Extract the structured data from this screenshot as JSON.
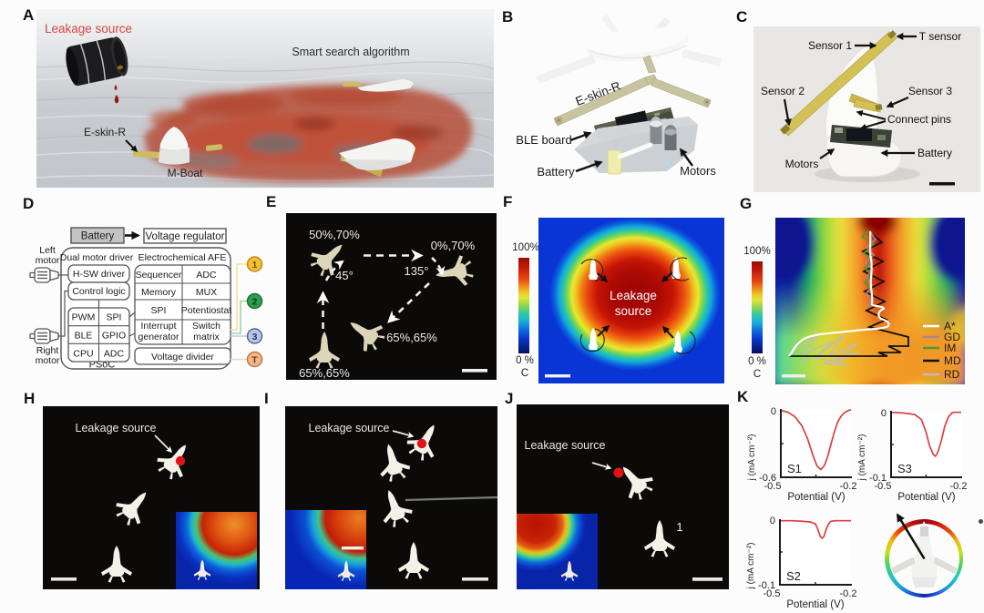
{
  "figure": {
    "panelA": {
      "label": "A",
      "leakage_source": "Leakage source",
      "smart_search": "Smart search algorithm",
      "eskin": "E-skin-R",
      "mboat": "M-Boat",
      "colors": {
        "leak_text": "#d64541",
        "red_patch": "#bf4a33",
        "water": "#c9ccd1"
      }
    },
    "panelB": {
      "label": "B",
      "eskin": "E-skin-R",
      "ble_board": "BLE board",
      "battery": "Battery",
      "motors": "Motors"
    },
    "panelC": {
      "label": "C",
      "sensor1": "Sensor 1",
      "t_sensor": "T sensor",
      "sensor2": "Sensor 2",
      "sensor3": "Sensor 3",
      "connect_pins": "Connect pins",
      "motors": "Motors",
      "battery": "Battery"
    },
    "panelD": {
      "label": "D",
      "battery": "Battery",
      "voltage_regulator": "Voltage regulator",
      "left_motor_line1": "Left",
      "left_motor_line2": "motor",
      "right_motor_line1": "Right",
      "right_motor_line2": "motor",
      "dual_motor_driver": "Dual motor driver",
      "electrochemical_afe": "Electrochemical AFE",
      "hsw_driver": "H-SW driver",
      "control_logic": "Control logic",
      "pwm": "PWM",
      "spi": "SPI",
      "ble": "BLE",
      "gpio": "GPIO",
      "cpu": "CPU",
      "adc": "ADC",
      "sequencer": "Sequencer",
      "adc_afe": "ADC",
      "memory": "Memory",
      "mux": "MUX",
      "spi_afe": "SPI",
      "potentiostat": "Potentiostat",
      "interrupt_line1": "Interrupt",
      "interrupt_line2": "generator",
      "switch_line1": "Switch",
      "switch_line2": "matrix",
      "voltage_divider": "Voltage divider",
      "psoc": "PSoC",
      "node1": "1",
      "node2": "2",
      "node3": "3",
      "nodeT": "T",
      "node_colors": {
        "n1": "#f2c233",
        "n2": "#2f9e4f",
        "n3": "#b9c6ea",
        "nT": "#f3b68c"
      }
    },
    "panelE": {
      "label": "E",
      "speed_top_left": "50%,70%",
      "speed_top_right": "0%,70%",
      "angle_45": "45°",
      "angle_135": "135°",
      "speed_mid": "65%,65%",
      "speed_bottom": "65%,65%"
    },
    "panelF": {
      "label": "F",
      "scale_top": "100%",
      "scale_bottom": "0 %",
      "scale_unit": "C",
      "leakage_line1": "Leakage",
      "leakage_line2": "source"
    },
    "panelG": {
      "label": "G",
      "scale_top": "100%",
      "scale_bottom": "0 %",
      "scale_unit": "C",
      "legend": [
        {
          "name": "A*",
          "color": "#ffffff"
        },
        {
          "name": "GD",
          "color": "#b5838d"
        },
        {
          "name": "IM",
          "color": "#4d9b31"
        },
        {
          "name": "MD",
          "color": "#101010"
        },
        {
          "name": "RD",
          "color": "#bcbcbc"
        }
      ]
    },
    "panelH": {
      "label": "H",
      "leakage_source": "Leakage source"
    },
    "panelI": {
      "label": "I",
      "leakage_source": "Leakage source"
    },
    "panelJ": {
      "label": "J",
      "leakage_source": "Leakage source",
      "boat_number": "1"
    },
    "panelK": {
      "label": "K",
      "s1": "S1",
      "s2": "S2",
      "s3": "S3",
      "xlabel": "Potential (V)",
      "ylabel": "j (mA cm⁻²)",
      "x_left": "-0.5",
      "x_right": "-0.2",
      "y_zero": "0",
      "s1_ymin": "-0.6",
      "s23_ymin": "-0.1",
      "curve_color": "#d84040"
    }
  },
  "chart_data": [
    {
      "type": "line",
      "title": "S1",
      "xlabel": "Potential (V)",
      "ylabel": "j (mA cm⁻²)",
      "xlim": [
        -0.5,
        -0.2
      ],
      "ylim": [
        -0.6,
        0
      ],
      "series": [
        {
          "name": "S1",
          "x": [
            -0.5,
            -0.47,
            -0.44,
            -0.41,
            -0.385,
            -0.36,
            -0.345,
            -0.329,
            -0.315,
            -0.3,
            -0.285,
            -0.27,
            -0.255,
            -0.24,
            -0.225,
            -0.21,
            -0.2
          ],
          "y": [
            -0.005,
            -0.02,
            -0.06,
            -0.14,
            -0.26,
            -0.42,
            -0.5,
            -0.53,
            -0.5,
            -0.42,
            -0.3,
            -0.19,
            -0.1,
            -0.05,
            -0.02,
            -0.005,
            0.0
          ]
        }
      ]
    },
    {
      "type": "line",
      "title": "S3",
      "xlabel": "Potential (V)",
      "ylabel": "j (mA cm⁻²)",
      "xlim": [
        -0.5,
        -0.2
      ],
      "ylim": [
        -0.1,
        0
      ],
      "series": [
        {
          "name": "S3",
          "x": [
            -0.5,
            -0.45,
            -0.4,
            -0.37,
            -0.35,
            -0.335,
            -0.32,
            -0.31,
            -0.3,
            -0.285,
            -0.27,
            -0.255,
            -0.24,
            -0.23,
            -0.2
          ],
          "y": [
            -0.001,
            -0.002,
            -0.004,
            -0.012,
            -0.032,
            -0.052,
            -0.065,
            -0.068,
            -0.062,
            -0.044,
            -0.022,
            -0.008,
            -0.002,
            -0.001,
            -0.001
          ]
        }
      ]
    },
    {
      "type": "line",
      "title": "S2",
      "xlabel": "Potential (V)",
      "ylabel": "j (mA cm⁻²)",
      "xlim": [
        -0.5,
        -0.2
      ],
      "ylim": [
        -0.1,
        0
      ],
      "series": [
        {
          "name": "S2",
          "x": [
            -0.5,
            -0.45,
            -0.4,
            -0.37,
            -0.35,
            -0.34,
            -0.33,
            -0.322,
            -0.314,
            -0.305,
            -0.295,
            -0.285,
            -0.27,
            -0.25,
            -0.2
          ],
          "y": [
            -0.001,
            -0.001,
            -0.002,
            -0.003,
            -0.006,
            -0.014,
            -0.025,
            -0.028,
            -0.025,
            -0.015,
            -0.006,
            -0.002,
            -0.001,
            -0.001,
            -0.001
          ]
        }
      ]
    }
  ]
}
